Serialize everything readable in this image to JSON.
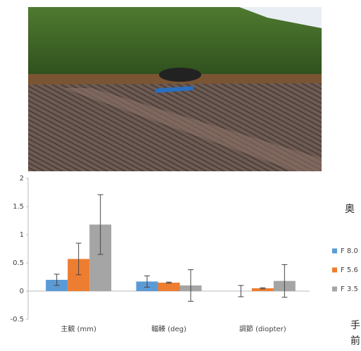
{
  "chart_data": {
    "type": "bar",
    "categories": [
      "主観 (mm)",
      "輻輳 (deg)",
      "調節 (diopter)"
    ],
    "series": [
      {
        "name": "F 8.0",
        "color": "#5b9bd5",
        "values": [
          0.2,
          0.17,
          0
        ],
        "errors": [
          0.1,
          0.1,
          0.1
        ]
      },
      {
        "name": "F 5.6",
        "color": "#ed7d31",
        "values": [
          0.57,
          0.15,
          0.05
        ],
        "errors": [
          0.28,
          0.01,
          0.01
        ]
      },
      {
        "name": "F 3.5",
        "color": "#a5a5a5",
        "values": [
          1.18,
          0.1,
          0.18
        ],
        "errors": [
          0.53,
          0.28,
          0.29
        ]
      }
    ],
    "ylim": [
      -0.5,
      2
    ],
    "yticks": [
      -0.5,
      0,
      0.5,
      1,
      1.5,
      2
    ],
    "side_labels": {
      "far": "奥",
      "near_1": "手",
      "near_2": "前"
    }
  }
}
